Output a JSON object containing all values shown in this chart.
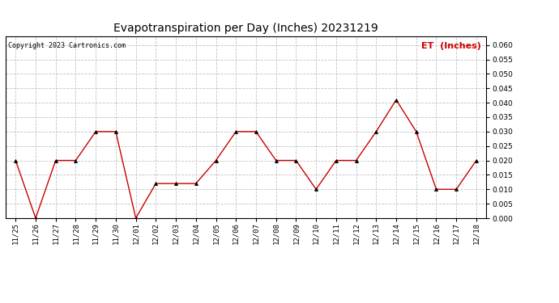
{
  "title": "Evapotranspiration per Day (Inches) 20231219",
  "copyright": "Copyright 2023 Cartronics.com",
  "legend_label": "ET  (Inches)",
  "dates": [
    "11/25",
    "11/26",
    "11/27",
    "11/28",
    "11/29",
    "11/30",
    "12/01",
    "12/02",
    "12/03",
    "12/04",
    "12/05",
    "12/06",
    "12/07",
    "12/08",
    "12/09",
    "12/10",
    "12/11",
    "12/12",
    "12/13",
    "12/14",
    "12/15",
    "12/16",
    "12/17",
    "12/18"
  ],
  "values": [
    0.02,
    0.0,
    0.02,
    0.02,
    0.03,
    0.03,
    0.0,
    0.012,
    0.012,
    0.012,
    0.02,
    0.03,
    0.03,
    0.02,
    0.02,
    0.01,
    0.02,
    0.02,
    0.03,
    0.041,
    0.03,
    0.01,
    0.01,
    0.02
  ],
  "line_color": "#cc0000",
  "marker_color": "#000000",
  "ylim": [
    0.0,
    0.063
  ],
  "yticks": [
    0.0,
    0.005,
    0.01,
    0.015,
    0.02,
    0.025,
    0.03,
    0.035,
    0.04,
    0.045,
    0.05,
    0.055,
    0.06
  ],
  "title_fontsize": 10,
  "copyright_fontsize": 6,
  "legend_fontsize": 8,
  "tick_fontsize": 6.5,
  "background_color": "#ffffff",
  "grid_color": "#bbbbbb"
}
